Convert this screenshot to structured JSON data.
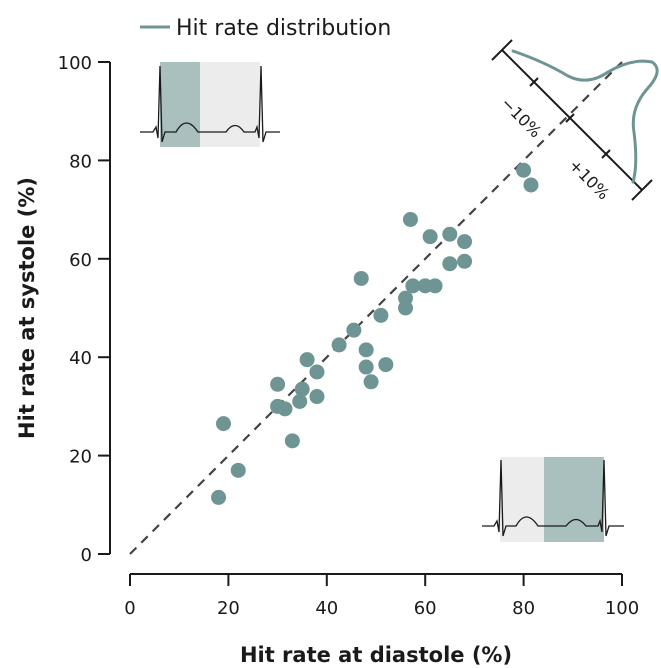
{
  "chart_data": {
    "type": "scatter",
    "xlabel": "Hit rate at diastole (%)",
    "ylabel": "Hit rate at systole (%)",
    "xlim": [
      0,
      100
    ],
    "ylim": [
      0,
      100
    ],
    "x_ticks": [
      "0",
      "20",
      "40",
      "60",
      "80",
      "100"
    ],
    "y_ticks": [
      "0",
      "20",
      "40",
      "60",
      "80",
      "100"
    ],
    "grid": false,
    "reference_line": "identity (dashed)",
    "legend": {
      "label": "Hit rate distribution",
      "placement": "top"
    },
    "histogram_labels": [
      "−10%",
      "+10%"
    ],
    "colors": {
      "points": "#6e9494",
      "distribution": "#6e9494",
      "reference": "#444444",
      "systole_shade": "#a9c0bf",
      "diastole_shade": "#ececec"
    },
    "points": [
      {
        "x": 18,
        "y": 11.5
      },
      {
        "x": 19,
        "y": 26.5
      },
      {
        "x": 22,
        "y": 17
      },
      {
        "x": 30,
        "y": 34.5
      },
      {
        "x": 30,
        "y": 30
      },
      {
        "x": 31.5,
        "y": 29.5
      },
      {
        "x": 33,
        "y": 23
      },
      {
        "x": 34.5,
        "y": 31
      },
      {
        "x": 35,
        "y": 33.5
      },
      {
        "x": 36,
        "y": 39.5
      },
      {
        "x": 38,
        "y": 37
      },
      {
        "x": 38,
        "y": 32
      },
      {
        "x": 42.5,
        "y": 42.5
      },
      {
        "x": 45.5,
        "y": 45.5
      },
      {
        "x": 47,
        "y": 56
      },
      {
        "x": 48,
        "y": 41.5
      },
      {
        "x": 48,
        "y": 38
      },
      {
        "x": 49,
        "y": 35
      },
      {
        "x": 51,
        "y": 48.5
      },
      {
        "x": 52,
        "y": 38.5
      },
      {
        "x": 56,
        "y": 50
      },
      {
        "x": 56,
        "y": 52
      },
      {
        "x": 57,
        "y": 68
      },
      {
        "x": 57.5,
        "y": 54.5
      },
      {
        "x": 60,
        "y": 54.5
      },
      {
        "x": 61,
        "y": 64.5
      },
      {
        "x": 62,
        "y": 54.5
      },
      {
        "x": 65,
        "y": 65
      },
      {
        "x": 65,
        "y": 59
      },
      {
        "x": 68,
        "y": 63.5
      },
      {
        "x": 68,
        "y": 59.5
      },
      {
        "x": 80,
        "y": 78
      },
      {
        "x": 81.5,
        "y": 75
      }
    ]
  }
}
